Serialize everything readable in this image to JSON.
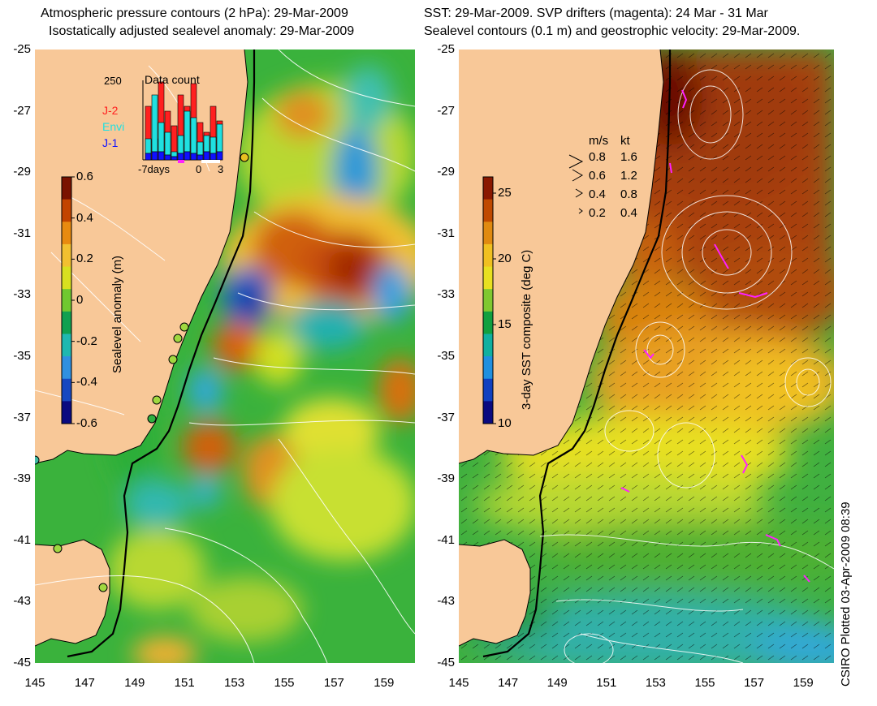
{
  "left_panel": {
    "title_line1": "Atmospheric pressure contours (2 hPa): 29-Mar-2009",
    "title_line2": "Isostatically adjusted sealevel anomaly: 29-Mar-2009",
    "colorbar": {
      "label": "Sealevel anomaly (m)",
      "ticks": [
        "0.6",
        "0.4",
        "0.2",
        "0",
        "-0.2",
        "-0.4",
        "-0.6"
      ],
      "colors": [
        "#7a1200",
        "#c24400",
        "#e88a10",
        "#f2c030",
        "#d8e020",
        "#70c830",
        "#10a050",
        "#20b8b0",
        "#3090e0",
        "#1848c0",
        "#0a0a80"
      ]
    },
    "inset": {
      "title": "Data count",
      "ymax_label": "250",
      "series": [
        {
          "name": "J-2",
          "color": "#ff2020"
        },
        {
          "name": "Envi",
          "color": "#20e0e0"
        },
        {
          "name": "J-1",
          "color": "#1010ff"
        }
      ],
      "xticks": [
        "-7days",
        "0",
        "3"
      ]
    }
  },
  "right_panel": {
    "title_line1": "SST: 29-Mar-2009. SVP drifters (magenta): 24 Mar - 31 Mar",
    "title_line2": "Sealevel contours (0.1 m) and geostrophic velocity: 29-Mar-2009.",
    "colorbar": {
      "label": "3-day SST composite (deg C)",
      "ticks": [
        "25",
        "20",
        "15",
        "10"
      ],
      "colors": [
        "#8a1800",
        "#c04a00",
        "#e08a10",
        "#f0c020",
        "#e8e020",
        "#80c830",
        "#10a040",
        "#10b0a0",
        "#2090e0",
        "#1040c0",
        "#0a0a80"
      ]
    },
    "velocity_legend": {
      "header": [
        "m/s",
        "kt"
      ],
      "rows": [
        [
          "0.8",
          "1.6"
        ],
        [
          "0.6",
          "1.2"
        ],
        [
          "0.4",
          "0.8"
        ],
        [
          "0.2",
          "0.4"
        ]
      ]
    }
  },
  "axes": {
    "y_ticks": [
      "-25",
      "-27",
      "-29",
      "-31",
      "-33",
      "-35",
      "-37",
      "-39",
      "-41",
      "-43",
      "-45"
    ],
    "x_ticks": [
      "145",
      "147",
      "149",
      "151",
      "153",
      "155",
      "157",
      "159"
    ]
  },
  "credit": "CSIRO Plotted 03-Apr-2009 08:39",
  "colors": {
    "land": "#f8c898",
    "ocean_base": "#30b040",
    "contour": "#ffffff",
    "coast": "#000000",
    "drifter": "#ff20ff"
  }
}
